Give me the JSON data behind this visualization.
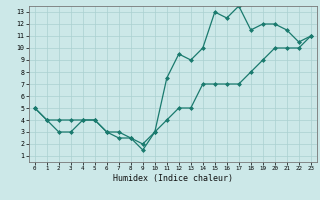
{
  "xlabel": "Humidex (Indice chaleur)",
  "bg_color": "#cce8e8",
  "grid_color": "#aad0d0",
  "line_color": "#1a7a6e",
  "xlim": [
    -0.5,
    23.5
  ],
  "ylim": [
    0.5,
    13.5
  ],
  "xticks": [
    0,
    1,
    2,
    3,
    4,
    5,
    6,
    7,
    8,
    9,
    10,
    11,
    12,
    13,
    14,
    15,
    16,
    17,
    18,
    19,
    20,
    21,
    22,
    23
  ],
  "yticks": [
    1,
    2,
    3,
    4,
    5,
    6,
    7,
    8,
    9,
    10,
    11,
    12,
    13
  ],
  "line1_x": [
    0,
    1,
    2,
    3,
    4,
    5,
    6,
    7,
    8,
    9,
    10,
    11,
    12,
    13,
    14,
    15,
    16,
    17,
    18,
    19,
    20,
    21,
    22,
    23
  ],
  "line1_y": [
    5,
    4,
    4,
    4,
    4,
    4,
    3,
    3,
    2.5,
    2,
    3,
    4,
    5,
    5,
    7,
    7,
    7,
    7,
    8,
    9,
    10,
    10,
    10,
    11
  ],
  "line2_x": [
    0,
    1,
    2,
    3,
    4,
    5,
    6,
    7,
    8,
    9,
    10,
    11,
    12,
    13,
    14,
    15,
    16,
    17,
    18,
    19,
    20,
    21,
    22,
    23
  ],
  "line2_y": [
    5,
    4,
    3,
    3,
    4,
    4,
    3,
    2.5,
    2.5,
    1.5,
    3,
    7.5,
    9.5,
    9,
    10,
    13,
    12.5,
    13.5,
    11.5,
    12,
    12,
    11.5,
    10.5,
    11
  ],
  "markersize": 2.0,
  "linewidth": 0.9
}
